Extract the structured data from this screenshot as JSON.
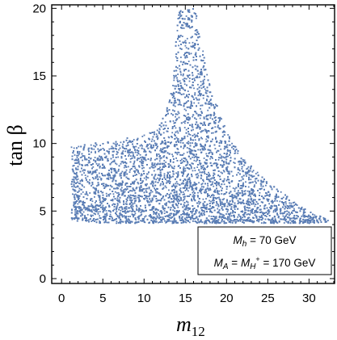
{
  "chart_data": {
    "type": "scatter",
    "title": "",
    "xlabel": "m12",
    "ylabel": "tan β",
    "xlim": [
      -1,
      33
    ],
    "ylim": [
      -0.3,
      20.2
    ],
    "x_ticks": [
      0,
      5,
      10,
      15,
      20,
      25,
      30
    ],
    "y_ticks": [
      0,
      5,
      10,
      15,
      20
    ],
    "x_tick_labels": [
      "0",
      "5",
      "10",
      "15",
      "20",
      "25",
      "30"
    ],
    "y_tick_labels": [
      "0",
      "5",
      "10",
      "15",
      "20"
    ],
    "frame_ticks": true,
    "grid": false,
    "marker_color": "#5a7db5",
    "series": [
      {
        "point_count_estimate": 9000,
        "region_upper_boundary": [
          [
            1.2,
            9.8
          ],
          [
            5,
            10.1
          ],
          [
            10,
            10.6
          ],
          [
            12,
            11.5
          ],
          [
            13,
            13.0
          ],
          [
            13.6,
            15.0
          ],
          [
            13.9,
            18.0
          ],
          [
            14.1,
            20.0
          ],
          [
            16.2,
            20.0
          ],
          [
            16.8,
            18.0
          ],
          [
            17.8,
            15.0
          ],
          [
            19,
            12.5
          ],
          [
            20.5,
            10.3
          ],
          [
            22,
            9.0
          ],
          [
            24,
            7.7
          ],
          [
            26,
            6.7
          ],
          [
            28,
            5.8
          ],
          [
            30,
            5.0
          ],
          [
            31.5,
            4.6
          ],
          [
            32.6,
            4.2
          ]
        ],
        "region_lower_boundary": [
          [
            1.2,
            4.3
          ],
          [
            5,
            4.1
          ],
          [
            10,
            4.1
          ],
          [
            15,
            4.1
          ],
          [
            20,
            4.1
          ],
          [
            25,
            4.1
          ],
          [
            30,
            4.1
          ],
          [
            32.6,
            4.2
          ]
        ]
      }
    ],
    "legend": {
      "position": "bottom-right",
      "line1": {
        "main": "M",
        "sub": "h",
        "rest": " = 70 GeV"
      },
      "line2": {
        "main1": "M",
        "sub1": "A",
        "eq": " = ",
        "main2": "M",
        "sub2": "H",
        "sup2": "+",
        "rest": " = 170 GeV"
      }
    }
  }
}
